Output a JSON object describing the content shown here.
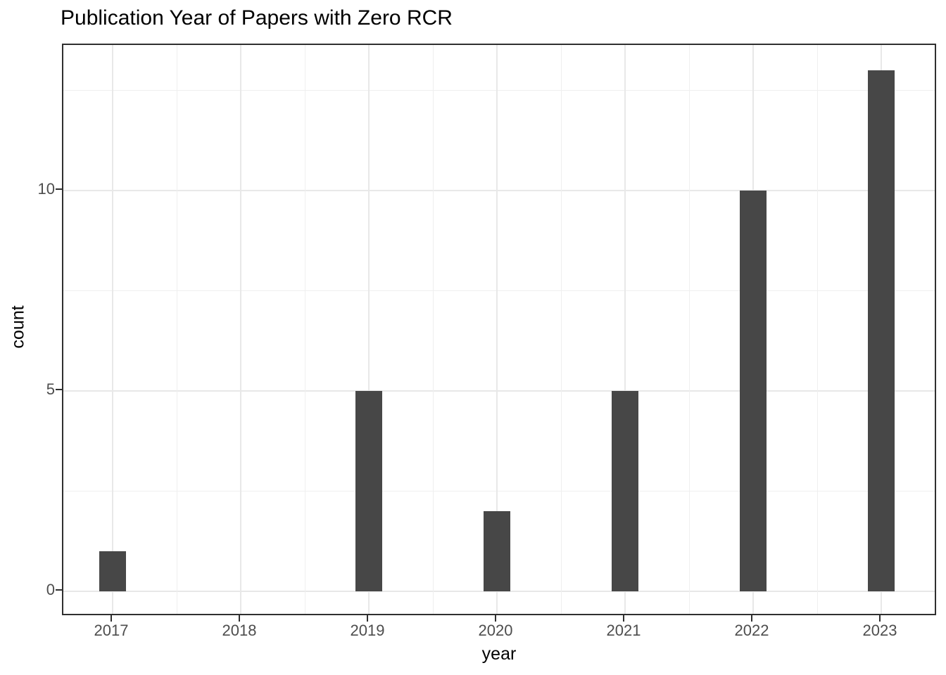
{
  "title": "Publication Year of Papers with Zero RCR",
  "chart_data": {
    "type": "bar",
    "categories": [
      "2017",
      "2018",
      "2019",
      "2020",
      "2021",
      "2022",
      "2023"
    ],
    "values": [
      1,
      0,
      5,
      2,
      5,
      10,
      13
    ],
    "title": "Publication Year of Papers with Zero RCR",
    "xlabel": "year",
    "ylabel": "count",
    "ylim": [
      0,
      13.65
    ],
    "yticks": [
      0,
      5,
      10
    ],
    "yminor": [
      2.5,
      7.5,
      12.5
    ],
    "grid": "on",
    "legend": "none",
    "bar_color": "#474747",
    "grid_major_color": "#e8e8e8",
    "grid_minor_color": "#efefef",
    "panel_border_color": "#2f2f2f",
    "tick_label_color": "#4d4d4d",
    "title_color": "#000000"
  }
}
